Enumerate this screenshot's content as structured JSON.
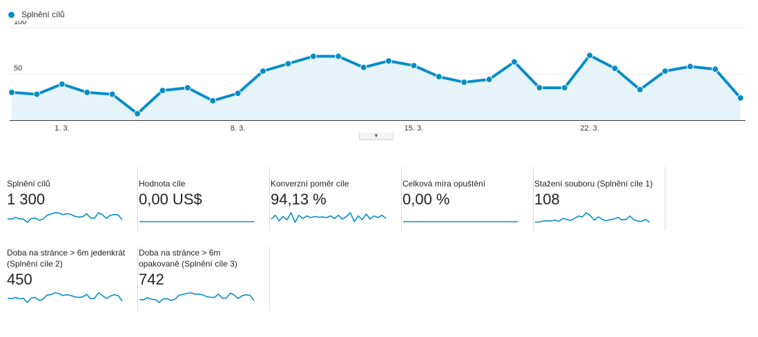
{
  "legend": {
    "label": "Splnění cílů",
    "color": "#058dc7"
  },
  "chart_data": {
    "type": "area",
    "series": [
      {
        "name": "Splnění cílů",
        "values": [
          30,
          28,
          39,
          30,
          28,
          7,
          32,
          35,
          21,
          29,
          53,
          61,
          69,
          69,
          57,
          64,
          59,
          47,
          41,
          44,
          63,
          35,
          35,
          70,
          56,
          33,
          53,
          58,
          55,
          24
        ]
      }
    ],
    "x": [
      "27. 2.",
      "28. 2.",
      "1. 3.",
      "2. 3.",
      "3. 3.",
      "4. 3.",
      "5. 3.",
      "6. 3.",
      "7. 3.",
      "8. 3.",
      "9. 3.",
      "10. 3.",
      "11. 3.",
      "12. 3.",
      "13. 3.",
      "14. 3.",
      "15. 3.",
      "16. 3.",
      "17. 3.",
      "18. 3.",
      "19. 3.",
      "20. 3.",
      "21. 3.",
      "22. 3.",
      "23. 3.",
      "24. 3.",
      "25. 3.",
      "26. 3.",
      "27. 3.",
      "28. 3."
    ],
    "x_ticks": [
      "1. 3.",
      "8. 3.",
      "15. 3.",
      "22. 3."
    ],
    "y_ticks": [
      "100",
      "50"
    ],
    "ylim": [
      0,
      100
    ],
    "grid": true,
    "legend": "top-left",
    "line_color": "#058dc7",
    "fill_color": "#e6f3f9"
  },
  "scorecards": [
    {
      "title": "Splnění cílů",
      "value": "1 300",
      "spark": [
        30,
        28,
        39,
        30,
        28,
        7,
        32,
        35,
        21,
        29,
        53,
        61,
        69,
        69,
        57,
        64,
        59,
        47,
        41,
        44,
        63,
        35,
        35,
        70,
        56,
        33,
        53,
        58,
        55,
        24
      ]
    },
    {
      "title": "Hodnota cíle",
      "value": "0,00 US$",
      "spark": [
        0,
        0,
        0,
        0,
        0,
        0,
        0,
        0,
        0,
        0,
        0,
        0,
        0,
        0,
        0,
        0,
        0,
        0,
        0,
        0,
        0,
        0,
        0,
        0,
        0,
        0,
        0,
        0,
        0,
        0
      ]
    },
    {
      "title": "Konverzní poměr cíle",
      "value": "94,13 %",
      "spark": [
        50,
        62,
        45,
        58,
        48,
        70,
        40,
        62,
        52,
        60,
        55,
        58,
        56,
        57,
        55,
        60,
        52,
        62,
        50,
        58,
        70,
        42,
        60,
        48,
        66,
        50,
        60,
        55,
        62,
        52
      ]
    },
    {
      "title": "Celková míra opuštění",
      "value": "0,00 %",
      "spark": [
        0,
        0,
        0,
        0,
        0,
        0,
        0,
        0,
        0,
        0,
        0,
        0,
        0,
        0,
        0,
        0,
        0,
        0,
        0,
        0,
        0,
        0,
        0,
        0,
        0,
        0,
        0,
        0,
        0,
        0
      ]
    },
    {
      "title": "Stažení souboru (Splnění cíle 1)",
      "value": "108",
      "spark": [
        22,
        24,
        30,
        32,
        30,
        36,
        28,
        45,
        40,
        34,
        46,
        60,
        55,
        80,
        62,
        35,
        55,
        40,
        32,
        38,
        42,
        52,
        36,
        40,
        60,
        38,
        30,
        28,
        40,
        22
      ]
    },
    {
      "title": "Doba na stránce > 6m jedenkrát (Splnění cíle 2)",
      "value": "450",
      "spark": [
        40,
        38,
        45,
        38,
        40,
        18,
        42,
        45,
        28,
        36,
        58,
        60,
        70,
        66,
        55,
        60,
        55,
        48,
        45,
        48,
        62,
        38,
        40,
        70,
        55,
        40,
        52,
        60,
        55,
        25
      ]
    },
    {
      "title": "Doba na stránce > 6m opakovaně (Splnění cíle 3)",
      "value": "742",
      "spark": [
        28,
        26,
        40,
        30,
        28,
        10,
        32,
        34,
        22,
        30,
        54,
        60,
        66,
        70,
        62,
        62,
        58,
        46,
        42,
        42,
        62,
        36,
        38,
        68,
        56,
        34,
        52,
        58,
        54,
        22
      ]
    }
  ]
}
